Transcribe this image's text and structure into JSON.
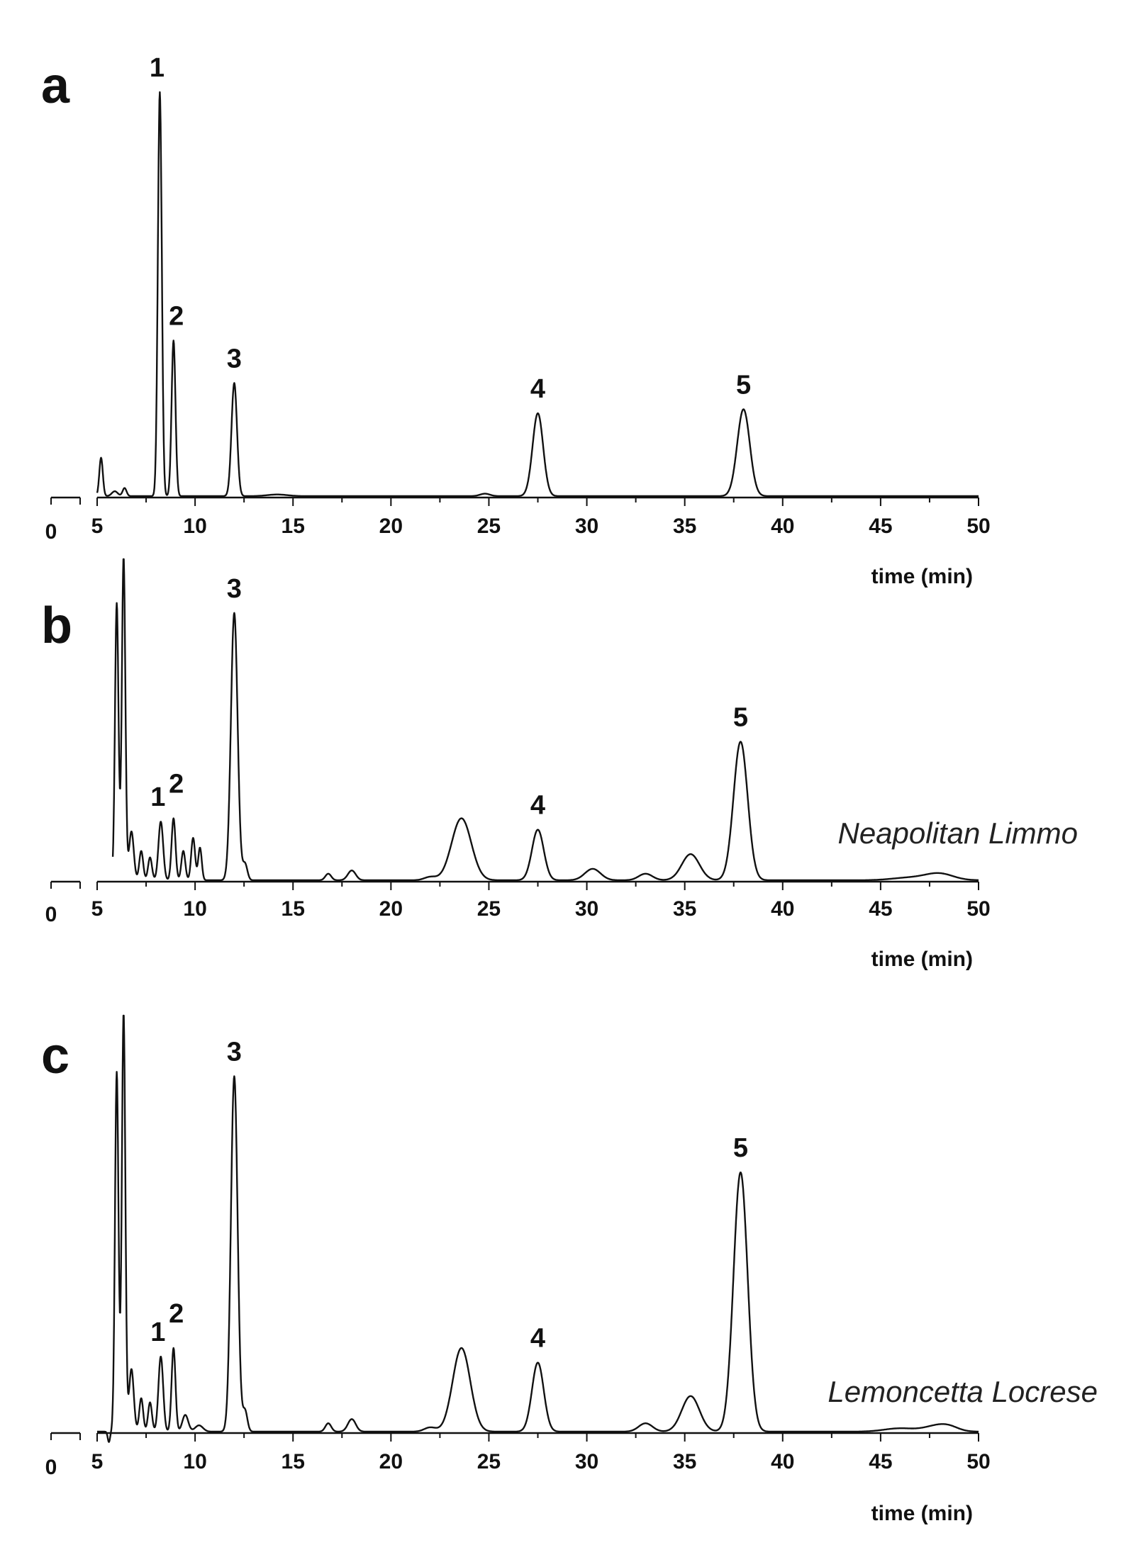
{
  "chart_data": [
    {
      "type": "line",
      "panel_label": "a",
      "xlabel": "time (min)",
      "xlim": [
        0,
        50
      ],
      "x_ticks": [
        "0",
        "5",
        "10",
        "15",
        "20",
        "25",
        "30",
        "35",
        "40",
        "45",
        "50"
      ],
      "sample_label": "",
      "baseline_start": 5.0,
      "peaks": [
        {
          "x": 5.2,
          "height": 0.095,
          "width": 0.09
        },
        {
          "x": 5.9,
          "height": 0.012,
          "width": 0.15
        },
        {
          "x": 6.4,
          "height": 0.02,
          "width": 0.1
        },
        {
          "x": 8.2,
          "height": 1.0,
          "width": 0.1
        },
        {
          "x": 8.9,
          "height": 0.385,
          "width": 0.1
        },
        {
          "x": 12.0,
          "height": 0.28,
          "width": 0.14
        },
        {
          "x": 14.2,
          "height": 0.004,
          "width": 0.5
        },
        {
          "x": 24.8,
          "height": 0.006,
          "width": 0.25
        },
        {
          "x": 27.5,
          "height": 0.205,
          "width": 0.27
        },
        {
          "x": 38.0,
          "height": 0.215,
          "width": 0.32
        }
      ],
      "peak_labels": [
        {
          "label": "1",
          "x": 8.2,
          "height": 1.0
        },
        {
          "label": "2",
          "x": 8.9,
          "height": 0.385
        },
        {
          "label": "3",
          "x": 12.0,
          "height": 0.28
        },
        {
          "label": "4",
          "x": 27.5,
          "height": 0.205
        },
        {
          "label": "5",
          "x": 38.0,
          "height": 0.215
        }
      ]
    },
    {
      "type": "line",
      "panel_label": "b",
      "xlabel": "time (min)",
      "xlim": [
        0,
        50
      ],
      "x_ticks": [
        "0",
        "5",
        "10",
        "15",
        "20",
        "25",
        "30",
        "35",
        "40",
        "45",
        "50"
      ],
      "sample_label": "Neapolitan Limmo",
      "baseline_start": 5.8,
      "peaks": [
        {
          "x": 6.0,
          "height": 0.85,
          "width": 0.09
        },
        {
          "x": 6.35,
          "height": 0.99,
          "width": 0.09
        },
        {
          "x": 6.75,
          "height": 0.15,
          "width": 0.12
        },
        {
          "x": 7.25,
          "height": 0.09,
          "width": 0.1
        },
        {
          "x": 7.7,
          "height": 0.07,
          "width": 0.1
        },
        {
          "x": 8.25,
          "height": 0.18,
          "width": 0.12
        },
        {
          "x": 8.9,
          "height": 0.19,
          "width": 0.1
        },
        {
          "x": 9.4,
          "height": 0.09,
          "width": 0.1
        },
        {
          "x": 9.9,
          "height": 0.13,
          "width": 0.1
        },
        {
          "x": 10.25,
          "height": 0.1,
          "width": 0.09
        },
        {
          "x": 12.0,
          "height": 0.82,
          "width": 0.17
        },
        {
          "x": 12.55,
          "height": 0.05,
          "width": 0.12
        },
        {
          "x": 16.8,
          "height": 0.02,
          "width": 0.15
        },
        {
          "x": 18.0,
          "height": 0.03,
          "width": 0.2
        },
        {
          "x": 22.0,
          "height": 0.01,
          "width": 0.3
        },
        {
          "x": 23.6,
          "height": 0.19,
          "width": 0.5
        },
        {
          "x": 27.5,
          "height": 0.155,
          "width": 0.3
        },
        {
          "x": 30.3,
          "height": 0.035,
          "width": 0.4
        },
        {
          "x": 33.0,
          "height": 0.02,
          "width": 0.35
        },
        {
          "x": 35.3,
          "height": 0.08,
          "width": 0.45
        },
        {
          "x": 37.85,
          "height": 0.425,
          "width": 0.36
        },
        {
          "x": 46.5,
          "height": 0.008,
          "width": 0.9
        },
        {
          "x": 48.0,
          "height": 0.02,
          "width": 0.7
        }
      ],
      "peak_labels": [
        {
          "label": "1",
          "x": 8.25,
          "height": 0.18
        },
        {
          "label": "2",
          "x": 8.9,
          "height": 0.19
        },
        {
          "label": "3",
          "x": 12.0,
          "height": 0.82
        },
        {
          "label": "4",
          "x": 27.5,
          "height": 0.155
        },
        {
          "label": "5",
          "x": 37.85,
          "height": 0.425
        }
      ]
    },
    {
      "type": "line",
      "panel_label": "c",
      "xlabel": "time (min)",
      "xlim": [
        0,
        50
      ],
      "x_ticks": [
        "0",
        "5",
        "10",
        "15",
        "20",
        "25",
        "30",
        "35",
        "40",
        "45",
        "50"
      ],
      "sample_label": "Lemoncetta Locrese",
      "baseline_start": 5.0,
      "peaks": [
        {
          "x": 5.6,
          "height": -0.025,
          "width": 0.06
        },
        {
          "x": 6.0,
          "height": 0.86,
          "width": 0.09
        },
        {
          "x": 6.35,
          "height": 1.0,
          "width": 0.09
        },
        {
          "x": 6.75,
          "height": 0.15,
          "width": 0.12
        },
        {
          "x": 7.25,
          "height": 0.08,
          "width": 0.1
        },
        {
          "x": 7.7,
          "height": 0.07,
          "width": 0.1
        },
        {
          "x": 8.25,
          "height": 0.18,
          "width": 0.12
        },
        {
          "x": 8.9,
          "height": 0.2,
          "width": 0.1
        },
        {
          "x": 9.5,
          "height": 0.04,
          "width": 0.15
        },
        {
          "x": 10.2,
          "height": 0.015,
          "width": 0.2
        },
        {
          "x": 12.0,
          "height": 0.85,
          "width": 0.17
        },
        {
          "x": 12.55,
          "height": 0.05,
          "width": 0.12
        },
        {
          "x": 16.8,
          "height": 0.02,
          "width": 0.15
        },
        {
          "x": 18.0,
          "height": 0.03,
          "width": 0.2
        },
        {
          "x": 22.0,
          "height": 0.01,
          "width": 0.3
        },
        {
          "x": 23.6,
          "height": 0.2,
          "width": 0.45
        },
        {
          "x": 27.5,
          "height": 0.165,
          "width": 0.3
        },
        {
          "x": 33.0,
          "height": 0.02,
          "width": 0.35
        },
        {
          "x": 35.3,
          "height": 0.085,
          "width": 0.45
        },
        {
          "x": 37.85,
          "height": 0.62,
          "width": 0.36
        },
        {
          "x": 46.0,
          "height": 0.008,
          "width": 0.8
        },
        {
          "x": 47.8,
          "height": 0.012,
          "width": 0.6
        },
        {
          "x": 48.5,
          "height": 0.01,
          "width": 0.5
        }
      ],
      "peak_labels": [
        {
          "label": "1",
          "x": 8.25,
          "height": 0.18
        },
        {
          "label": "2",
          "x": 8.9,
          "height": 0.2
        },
        {
          "label": "3",
          "x": 12.0,
          "height": 0.85
        },
        {
          "label": "4",
          "x": 27.5,
          "height": 0.165
        },
        {
          "label": "5",
          "x": 37.85,
          "height": 0.62
        }
      ]
    }
  ]
}
